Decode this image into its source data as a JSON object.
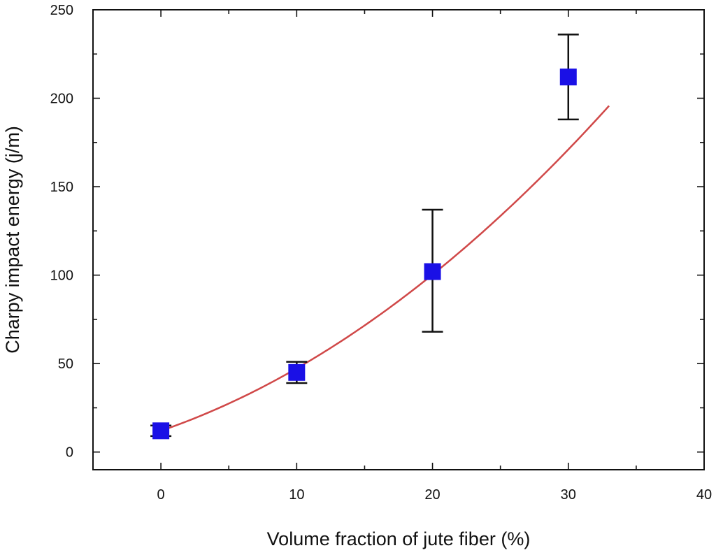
{
  "chart_data": {
    "type": "scatter",
    "xlabel": "Volume fraction of jute fiber (%)",
    "ylabel": "Charpy impact energy (j/m)",
    "xlim": [
      -5,
      40
    ],
    "ylim": [
      -10,
      250
    ],
    "x_ticks": [
      0,
      10,
      20,
      30,
      40
    ],
    "y_ticks": [
      0,
      50,
      100,
      150,
      200,
      250
    ],
    "x_minor_step": 5,
    "y_minor_step": 25,
    "grid": false,
    "series": [
      {
        "x": [
          0,
          10,
          20,
          30
        ],
        "y": [
          12,
          45,
          102,
          212
        ],
        "error_low": [
          9,
          39,
          68,
          188
        ],
        "error_high": [
          15,
          51,
          137,
          236
        ],
        "marker": "square",
        "color": "#1a10e6"
      }
    ],
    "fit_curve": {
      "type": "quadratic",
      "x_range": [
        0,
        33
      ],
      "coefficients": [
        12.0,
        2.64,
        0.0887
      ],
      "color": "#d04848"
    }
  }
}
